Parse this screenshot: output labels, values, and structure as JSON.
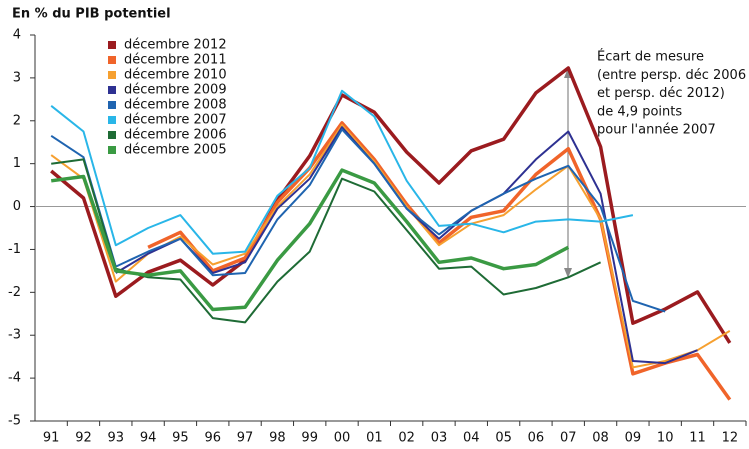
{
  "chart_data": {
    "type": "line",
    "title": "En % du PIB potentiel",
    "categories": [
      "91",
      "92",
      "93",
      "94",
      "95",
      "96",
      "97",
      "98",
      "99",
      "00",
      "01",
      "02",
      "03",
      "04",
      "05",
      "06",
      "07",
      "08",
      "09",
      "10",
      "11",
      "12"
    ],
    "ylim": [
      -5,
      4
    ],
    "yticks": [
      -5,
      -4,
      -3,
      -2,
      -1,
      0,
      1,
      2,
      3,
      4
    ],
    "annotation_lines": [
      "Écart de mesure",
      "(entre persp. déc 2006",
      "et persp. déc 2012)",
      "de 4,9 points",
      "pour l'année 2007"
    ],
    "series": [
      {
        "name": "décembre 2012",
        "color": "#9b1b1f",
        "line_width": 3.5,
        "values": [
          0.83,
          0.2,
          -2.09,
          -1.53,
          -1.25,
          -1.83,
          -1.25,
          0.15,
          1.18,
          2.6,
          2.2,
          1.27,
          0.55,
          1.3,
          1.57,
          2.65,
          3.23,
          1.39,
          -2.72,
          -2.39,
          -1.99,
          -3.18
        ]
      },
      {
        "name": "décembre 2011",
        "color": "#f0642a",
        "line_width": 3.5,
        "values": [
          null,
          null,
          null,
          -0.95,
          -0.6,
          -1.5,
          -1.2,
          0.1,
          0.9,
          1.95,
          1.1,
          0.05,
          -0.85,
          -0.25,
          -0.1,
          0.75,
          1.35,
          -0.3,
          -3.9,
          -3.65,
          -3.45,
          -4.5
        ]
      },
      {
        "name": "décembre 2010",
        "color": "#f6a030",
        "line_width": 2,
        "values": [
          1.2,
          0.65,
          -1.75,
          -1.1,
          -0.7,
          -1.35,
          -1.1,
          0.0,
          0.75,
          1.9,
          1.05,
          0.0,
          -0.9,
          -0.4,
          -0.2,
          0.4,
          0.95,
          -0.3,
          -3.75,
          -3.6,
          -3.35,
          -2.9
        ]
      },
      {
        "name": "décembre 2009",
        "color": "#2e3192",
        "line_width": 2,
        "values": [
          null,
          null,
          -1.55,
          -1.1,
          -0.75,
          -1.55,
          -1.3,
          -0.05,
          0.65,
          1.85,
          1.0,
          -0.05,
          -0.75,
          -0.1,
          0.3,
          1.1,
          1.75,
          0.3,
          -3.6,
          -3.65,
          -3.35,
          null
        ]
      },
      {
        "name": "décembre 2008",
        "color": "#1f64b0",
        "line_width": 2,
        "values": [
          1.65,
          1.15,
          -1.4,
          -1.05,
          -0.75,
          -1.6,
          -1.55,
          -0.3,
          0.5,
          1.8,
          1.0,
          -0.05,
          -0.65,
          -0.1,
          0.3,
          0.65,
          0.95,
          0.0,
          -2.2,
          -2.45,
          null,
          null
        ]
      },
      {
        "name": "décembre 2007",
        "color": "#29b6e8",
        "line_width": 2,
        "values": [
          2.35,
          1.75,
          -0.9,
          -0.5,
          -0.2,
          -1.1,
          -1.05,
          0.25,
          0.9,
          2.7,
          2.1,
          0.6,
          -0.45,
          -0.4,
          -0.6,
          -0.35,
          -0.3,
          -0.35,
          -0.2,
          null,
          null,
          null
        ]
      },
      {
        "name": "décembre 2006",
        "color": "#1e6b35",
        "line_width": 2,
        "values": [
          1.0,
          1.1,
          -1.45,
          -1.65,
          -1.7,
          -2.6,
          -2.7,
          -1.75,
          -1.05,
          0.65,
          0.35,
          -0.55,
          -1.45,
          -1.4,
          -2.05,
          -1.9,
          -1.65,
          -1.3,
          null,
          null,
          null,
          null
        ]
      },
      {
        "name": "décembre 2005",
        "color": "#3a9a43",
        "line_width": 3.5,
        "values": [
          0.6,
          0.7,
          -1.5,
          -1.6,
          -1.5,
          -2.4,
          -2.35,
          -1.25,
          -0.4,
          0.85,
          0.55,
          -0.35,
          -1.3,
          -1.2,
          -1.45,
          -1.35,
          -0.95,
          null,
          null,
          null,
          null,
          null
        ]
      }
    ]
  }
}
